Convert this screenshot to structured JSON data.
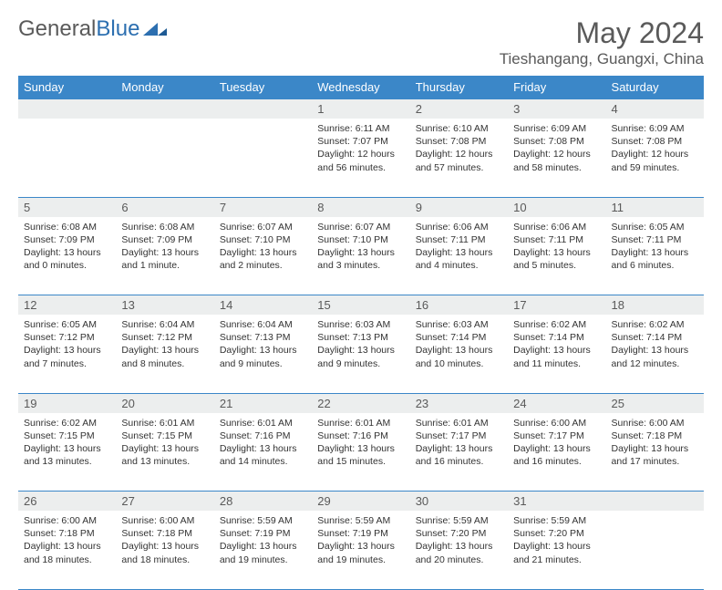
{
  "logo": {
    "part1": "General",
    "part2": "Blue"
  },
  "title": "May 2024",
  "location": "Tieshangang, Guangxi, China",
  "colors": {
    "header_bg": "#3b87c8",
    "header_text": "#ffffff",
    "daynum_bg": "#eceeee",
    "daynum_text": "#5a5a5a",
    "border": "#3b87c8",
    "body_text": "#333333",
    "title_text": "#5a5a5a",
    "logo_gray": "#5a5a5a",
    "logo_blue": "#2c6fb0",
    "page_bg": "#ffffff"
  },
  "typography": {
    "title_fontsize": 32,
    "location_fontsize": 17,
    "dayheader_fontsize": 13,
    "daynum_fontsize": 13,
    "cell_fontsize": 10.5
  },
  "day_names": [
    "Sunday",
    "Monday",
    "Tuesday",
    "Wednesday",
    "Thursday",
    "Friday",
    "Saturday"
  ],
  "weeks": [
    {
      "nums": [
        "",
        "",
        "",
        "1",
        "2",
        "3",
        "4"
      ],
      "cells": [
        null,
        null,
        null,
        {
          "sunrise": "6:11 AM",
          "sunset": "7:07 PM",
          "daylight": "12 hours and 56 minutes."
        },
        {
          "sunrise": "6:10 AM",
          "sunset": "7:08 PM",
          "daylight": "12 hours and 57 minutes."
        },
        {
          "sunrise": "6:09 AM",
          "sunset": "7:08 PM",
          "daylight": "12 hours and 58 minutes."
        },
        {
          "sunrise": "6:09 AM",
          "sunset": "7:08 PM",
          "daylight": "12 hours and 59 minutes."
        }
      ]
    },
    {
      "nums": [
        "5",
        "6",
        "7",
        "8",
        "9",
        "10",
        "11"
      ],
      "cells": [
        {
          "sunrise": "6:08 AM",
          "sunset": "7:09 PM",
          "daylight": "13 hours and 0 minutes."
        },
        {
          "sunrise": "6:08 AM",
          "sunset": "7:09 PM",
          "daylight": "13 hours and 1 minute."
        },
        {
          "sunrise": "6:07 AM",
          "sunset": "7:10 PM",
          "daylight": "13 hours and 2 minutes."
        },
        {
          "sunrise": "6:07 AM",
          "sunset": "7:10 PM",
          "daylight": "13 hours and 3 minutes."
        },
        {
          "sunrise": "6:06 AM",
          "sunset": "7:11 PM",
          "daylight": "13 hours and 4 minutes."
        },
        {
          "sunrise": "6:06 AM",
          "sunset": "7:11 PM",
          "daylight": "13 hours and 5 minutes."
        },
        {
          "sunrise": "6:05 AM",
          "sunset": "7:11 PM",
          "daylight": "13 hours and 6 minutes."
        }
      ]
    },
    {
      "nums": [
        "12",
        "13",
        "14",
        "15",
        "16",
        "17",
        "18"
      ],
      "cells": [
        {
          "sunrise": "6:05 AM",
          "sunset": "7:12 PM",
          "daylight": "13 hours and 7 minutes."
        },
        {
          "sunrise": "6:04 AM",
          "sunset": "7:12 PM",
          "daylight": "13 hours and 8 minutes."
        },
        {
          "sunrise": "6:04 AM",
          "sunset": "7:13 PM",
          "daylight": "13 hours and 9 minutes."
        },
        {
          "sunrise": "6:03 AM",
          "sunset": "7:13 PM",
          "daylight": "13 hours and 9 minutes."
        },
        {
          "sunrise": "6:03 AM",
          "sunset": "7:14 PM",
          "daylight": "13 hours and 10 minutes."
        },
        {
          "sunrise": "6:02 AM",
          "sunset": "7:14 PM",
          "daylight": "13 hours and 11 minutes."
        },
        {
          "sunrise": "6:02 AM",
          "sunset": "7:14 PM",
          "daylight": "13 hours and 12 minutes."
        }
      ]
    },
    {
      "nums": [
        "19",
        "20",
        "21",
        "22",
        "23",
        "24",
        "25"
      ],
      "cells": [
        {
          "sunrise": "6:02 AM",
          "sunset": "7:15 PM",
          "daylight": "13 hours and 13 minutes."
        },
        {
          "sunrise": "6:01 AM",
          "sunset": "7:15 PM",
          "daylight": "13 hours and 13 minutes."
        },
        {
          "sunrise": "6:01 AM",
          "sunset": "7:16 PM",
          "daylight": "13 hours and 14 minutes."
        },
        {
          "sunrise": "6:01 AM",
          "sunset": "7:16 PM",
          "daylight": "13 hours and 15 minutes."
        },
        {
          "sunrise": "6:01 AM",
          "sunset": "7:17 PM",
          "daylight": "13 hours and 16 minutes."
        },
        {
          "sunrise": "6:00 AM",
          "sunset": "7:17 PM",
          "daylight": "13 hours and 16 minutes."
        },
        {
          "sunrise": "6:00 AM",
          "sunset": "7:18 PM",
          "daylight": "13 hours and 17 minutes."
        }
      ]
    },
    {
      "nums": [
        "26",
        "27",
        "28",
        "29",
        "30",
        "31",
        ""
      ],
      "cells": [
        {
          "sunrise": "6:00 AM",
          "sunset": "7:18 PM",
          "daylight": "13 hours and 18 minutes."
        },
        {
          "sunrise": "6:00 AM",
          "sunset": "7:18 PM",
          "daylight": "13 hours and 18 minutes."
        },
        {
          "sunrise": "5:59 AM",
          "sunset": "7:19 PM",
          "daylight": "13 hours and 19 minutes."
        },
        {
          "sunrise": "5:59 AM",
          "sunset": "7:19 PM",
          "daylight": "13 hours and 19 minutes."
        },
        {
          "sunrise": "5:59 AM",
          "sunset": "7:20 PM",
          "daylight": "13 hours and 20 minutes."
        },
        {
          "sunrise": "5:59 AM",
          "sunset": "7:20 PM",
          "daylight": "13 hours and 21 minutes."
        },
        null
      ]
    }
  ]
}
